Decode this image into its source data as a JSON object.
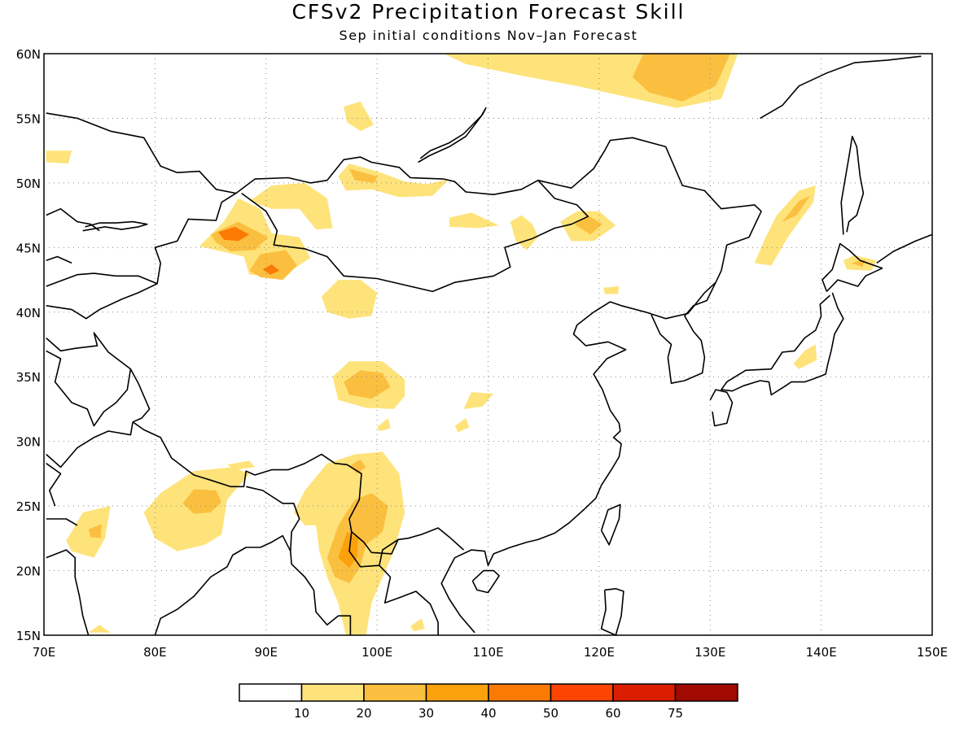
{
  "title": "CFSv2 Precipitation Forecast Skill",
  "subtitle": "Sep initial conditions  Nov–Jan Forecast",
  "map": {
    "lon_range": [
      70,
      150
    ],
    "lat_range": [
      15,
      60
    ],
    "lon_ticks": [
      {
        "value": 70,
        "label": "70E"
      },
      {
        "value": 80,
        "label": "80E"
      },
      {
        "value": 90,
        "label": "90E"
      },
      {
        "value": 100,
        "label": "100E"
      },
      {
        "value": 110,
        "label": "110E"
      },
      {
        "value": 120,
        "label": "120E"
      },
      {
        "value": 130,
        "label": "130E"
      },
      {
        "value": 140,
        "label": "140E"
      },
      {
        "value": 150,
        "label": "150E"
      }
    ],
    "lat_ticks": [
      {
        "value": 15,
        "label": "15N"
      },
      {
        "value": 20,
        "label": "20N"
      },
      {
        "value": 25,
        "label": "25N"
      },
      {
        "value": 30,
        "label": "30N"
      },
      {
        "value": 35,
        "label": "35N"
      },
      {
        "value": 40,
        "label": "40N"
      },
      {
        "value": 45,
        "label": "45N"
      },
      {
        "value": 50,
        "label": "50N"
      },
      {
        "value": 55,
        "label": "55N"
      },
      {
        "value": 60,
        "label": "60N"
      }
    ],
    "grid": true
  },
  "legend": {
    "colors": [
      "#ffffff",
      "#fee37a",
      "#fbbf40",
      "#fba10c",
      "#fb7a04",
      "#fb4500",
      "#db1e00",
      "#a00a00"
    ],
    "labels": [
      "10",
      "20",
      "30",
      "40",
      "50",
      "60",
      "75"
    ]
  }
}
